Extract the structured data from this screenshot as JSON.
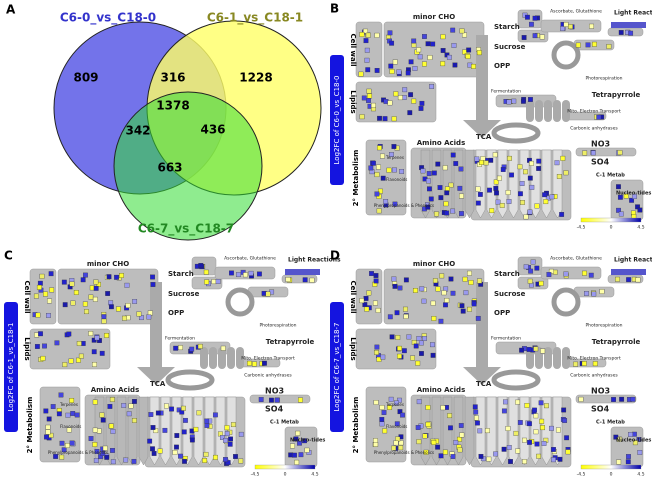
{
  "venn": {
    "panel_label": "A",
    "sets": [
      "C6-0_vs_C18-0",
      "C6-1_vs_C18-1",
      "C6-7_vs_C18-7"
    ],
    "regions": {
      "only_0": "809",
      "only_1": "1228",
      "only_7": "663",
      "s0_s1": "316",
      "s0_s7": "342",
      "s1_s7": "436",
      "all": "1378"
    }
  },
  "panels": [
    {
      "panel_label": "B",
      "side": "Log2FC of C6-0_vs_C18-0"
    },
    {
      "panel_label": "C",
      "side": "Log2FC of C6-1_vs_C18-1"
    },
    {
      "panel_label": "D",
      "side": "Log2FC of C6-7_vs_C18-7"
    }
  ],
  "labels": {
    "minor_cho": "minor CHO",
    "starch": "Starch",
    "sucrose": "Sucrose",
    "opp": "OPP",
    "cell_wall": "Cell wall",
    "lipids": "Lipids",
    "amino_acids": "Amino Acids",
    "tca": "TCA",
    "fermentation": "Fermentation",
    "ascorbate": "Ascorbate, Glutathione",
    "light": "Light Reactions",
    "photoresp": "Photorespiration",
    "tetrapyrrole": "Tetrapyrrole",
    "mito": "Mito. Electron Transport",
    "carbonic": "Carbonic anhydrases",
    "no3": "NO3",
    "so4": "SO4",
    "c1": "C-1 Metab",
    "nucleotides": "Nucleo-tides",
    "secondary": "2° Metabolism",
    "terpenes": "Terpenes",
    "flavonoids": "Flavonoids",
    "phenyl": "Phenylpropanoids & Phenolics",
    "scale_min": "-4.5",
    "scale_mid": "0",
    "scale_max": "4.5"
  }
}
